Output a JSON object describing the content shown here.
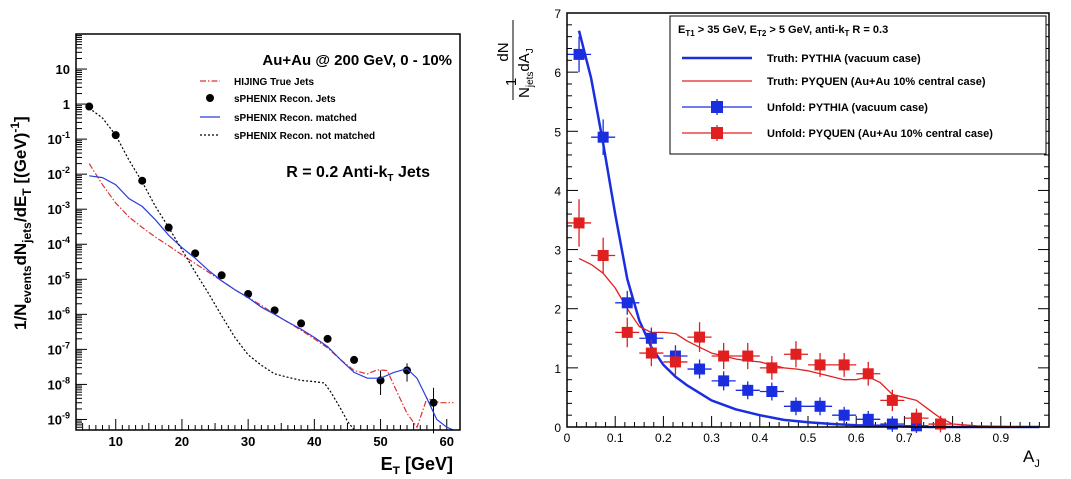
{
  "chart_data": [
    {
      "type": "line",
      "yscale": "log",
      "xlim": [
        4,
        62
      ],
      "ylim": [
        5e-10,
        100
      ],
      "xlabel": "E",
      "xlabel_sub": "T",
      "xlabel_unit": " [GeV]",
      "ylabel": "1/N_events dN_jets/dE_T [(GeV)^-1]",
      "xticks": [
        10,
        20,
        30,
        40,
        50,
        60
      ],
      "yticks": [
        {
          "v": 1e-09,
          "mant": "10",
          "exp": "-9"
        },
        {
          "v": 1e-08,
          "mant": "10",
          "exp": "-8"
        },
        {
          "v": 1e-07,
          "mant": "10",
          "exp": "-7"
        },
        {
          "v": 1e-06,
          "mant": "10",
          "exp": "-6"
        },
        {
          "v": 1e-05,
          "mant": "10",
          "exp": "-5"
        },
        {
          "v": 0.0001,
          "mant": "10",
          "exp": "-4"
        },
        {
          "v": 0.001,
          "mant": "10",
          "exp": "-3"
        },
        {
          "v": 0.01,
          "mant": "10",
          "exp": "-2"
        },
        {
          "v": 0.1,
          "mant": "10",
          "exp": "-1"
        },
        {
          "v": 1,
          "mant": "1",
          "exp": ""
        },
        {
          "v": 10,
          "mant": "10",
          "exp": ""
        }
      ],
      "annotation1": "Au+Au @ 200 GeV, 0 - 10%",
      "annotation2_main": "R = 0.2 Anti-k",
      "annotation2_sub": "T",
      "annotation2_end": " Jets",
      "legend_position": "upper-right",
      "series": [
        {
          "name": "HIJING True Jets",
          "style": "dash-dot",
          "color": "#e03030",
          "x": [
            6,
            8,
            10,
            12,
            14,
            16,
            18,
            20,
            22,
            24,
            26,
            28,
            30,
            32,
            34,
            36,
            38,
            40,
            42,
            44,
            46,
            48,
            49.5,
            51,
            52.5,
            54,
            55.5,
            57,
            59,
            61
          ],
          "y": [
            0.02,
            0.005,
            0.0015,
            0.0006,
            0.0003,
            0.00016,
            9e-05,
            5e-05,
            2.8e-05,
            1.6e-05,
            9e-06,
            5e-06,
            3e-06,
            1.8e-06,
            1e-06,
            6e-07,
            3.5e-07,
            2e-07,
            1.1e-07,
            5e-08,
            2.5e-08,
            2e-08,
            2.6e-08,
            2.5e-08,
            6e-09,
            1.5e-09,
            6e-10,
            4e-09,
            3e-09,
            3e-09
          ]
        },
        {
          "name": "sPHENIX Recon. Jets",
          "style": "points",
          "color": "#000000",
          "x": [
            6,
            10,
            14,
            18,
            22,
            26,
            30,
            34,
            38,
            42,
            46,
            50,
            54,
            58
          ],
          "y": [
            0.85,
            0.13,
            0.0065,
            0.0003,
            5.5e-05,
            1.3e-05,
            3.8e-06,
            1.3e-06,
            5.5e-07,
            2e-07,
            5e-08,
            1.3e-08,
            2.5e-08,
            3e-09
          ],
          "err_low": [
            null,
            null,
            null,
            null,
            null,
            null,
            null,
            null,
            null,
            null,
            null,
            5e-09,
            1.2e-08,
            4e-10
          ],
          "err_high": [
            null,
            null,
            null,
            null,
            null,
            null,
            null,
            null,
            null,
            null,
            null,
            2.5e-08,
            4e-08,
            8e-09
          ]
        },
        {
          "name": "sPHENIX Recon. matched",
          "style": "solid",
          "color": "#2a3de0",
          "x": [
            6,
            8,
            10,
            12,
            14,
            16,
            18,
            20,
            22,
            24,
            26,
            28,
            30,
            32,
            34,
            36,
            38,
            40,
            42,
            44,
            46,
            48,
            50,
            52,
            54,
            55.5,
            57,
            58.5,
            60,
            61
          ],
          "y": [
            0.009,
            0.008,
            0.005,
            0.002,
            0.0012,
            0.0005,
            0.00018,
            8e-05,
            4e-05,
            1.8e-05,
            9e-06,
            5e-06,
            3e-06,
            1.6e-06,
            1e-06,
            6e-07,
            3.8e-07,
            2.2e-07,
            1.2e-07,
            5e-08,
            2.2e-08,
            1.5e-08,
            1.5e-08,
            2.2e-08,
            2.8e-08,
            1.5e-08,
            4e-09,
            1e-09,
            6e-10,
            5e-10
          ]
        },
        {
          "name": "sPHENIX Recon. not matched",
          "style": "dotted",
          "color": "#000000",
          "x": [
            5.5,
            8,
            10,
            12,
            14,
            16,
            18,
            20,
            22,
            24,
            26,
            28,
            30,
            32,
            34,
            36,
            38,
            40,
            41.5,
            42.5,
            44,
            45,
            46
          ],
          "y": [
            0.9,
            0.4,
            0.13,
            0.025,
            0.006,
            0.0012,
            0.0003,
            7e-05,
            1.6e-05,
            4e-06,
            9e-07,
            2.2e-07,
            7e-08,
            3.5e-08,
            2e-08,
            1.6e-08,
            1.3e-08,
            1.2e-08,
            1.1e-08,
            6e-09,
            2e-09,
            9e-10,
            5e-10
          ]
        }
      ]
    },
    {
      "type": "line",
      "xlim": [
        0,
        1
      ],
      "ylim": [
        0,
        7
      ],
      "xlabel": "A",
      "xlabel_sub": "J",
      "ylabel": "1/N_jets dN/dA_J",
      "ylabel_parts": {
        "one": "1",
        "num": "dN",
        "den1": "N",
        "den_sub": "jets",
        "den2": "dA",
        "den_sub2": "J"
      },
      "xticks": [
        0,
        0.1,
        0.2,
        0.3,
        0.4,
        0.5,
        0.6,
        0.7,
        0.8,
        0.9
      ],
      "xtick_labels": [
        "0",
        "0.1",
        "0.2",
        "0.3",
        "0.4",
        "0.5",
        "0.6",
        "0.7",
        "0.8",
        "0.9"
      ],
      "yticks": [
        0,
        1,
        2,
        3,
        4,
        5,
        6,
        7
      ],
      "legend_title": {
        "a": "E",
        "a_sub": "T1",
        "b": " > 35 GeV, E",
        "b_sub": "T2",
        "c": " > 5 GeV, anti-k",
        "c_sub": "T",
        "d": " R = 0.3"
      },
      "legend_position": "top-right",
      "series": [
        {
          "name": "Truth:  PYTHIA (vacuum case)",
          "style": "solid",
          "color": "#1a2ee0",
          "x": [
            0.025,
            0.05,
            0.075,
            0.1,
            0.125,
            0.15,
            0.175,
            0.2,
            0.225,
            0.25,
            0.3,
            0.35,
            0.4,
            0.45,
            0.5,
            0.55,
            0.6,
            0.65,
            0.7,
            0.75,
            0.8,
            0.85,
            0.9,
            0.95,
            0.98
          ],
          "y": [
            6.7,
            5.9,
            4.8,
            3.6,
            2.5,
            1.8,
            1.35,
            1.05,
            0.85,
            0.7,
            0.45,
            0.3,
            0.2,
            0.12,
            0.08,
            0.05,
            0.03,
            0.02,
            0.01,
            0,
            0,
            0,
            0,
            0,
            0
          ]
        },
        {
          "name": "Truth:  PYQUEN (Au+Au 10% central case)",
          "style": "solid",
          "color": "#e02020",
          "x": [
            0.025,
            0.05,
            0.075,
            0.1,
            0.125,
            0.15,
            0.175,
            0.2,
            0.225,
            0.25,
            0.275,
            0.3,
            0.325,
            0.35,
            0.375,
            0.4,
            0.425,
            0.45,
            0.475,
            0.5,
            0.525,
            0.55,
            0.575,
            0.6,
            0.625,
            0.65,
            0.675,
            0.7,
            0.725,
            0.75,
            0.775,
            0.8,
            0.85,
            0.9,
            0.95,
            0.98
          ],
          "y": [
            2.85,
            2.75,
            2.6,
            2.35,
            2.0,
            1.7,
            1.6,
            1.6,
            1.58,
            1.45,
            1.35,
            1.25,
            1.2,
            1.15,
            1.12,
            1.1,
            1.05,
            1.0,
            0.98,
            0.95,
            0.9,
            0.85,
            0.8,
            0.8,
            0.85,
            0.75,
            0.55,
            0.5,
            0.45,
            0.3,
            0.15,
            0.05,
            0.02,
            0.01,
            0,
            0
          ]
        },
        {
          "name": "Unfold:  PYTHIA (vacuum case)",
          "style": "points",
          "color": "#1a2ee0",
          "x": [
            0.025,
            0.075,
            0.125,
            0.175,
            0.225,
            0.275,
            0.325,
            0.375,
            0.425,
            0.475,
            0.525,
            0.575,
            0.625,
            0.675,
            0.725
          ],
          "y": [
            6.3,
            4.9,
            2.1,
            1.5,
            1.2,
            0.98,
            0.78,
            0.62,
            0.6,
            0.35,
            0.35,
            0.2,
            0.13,
            0.05,
            0.02
          ],
          "err": [
            0.2,
            0.2,
            0.1,
            0.08,
            0.08,
            0.06,
            0.06,
            0.05,
            0.05,
            0.05,
            0.05,
            0.04,
            0.04,
            0.03,
            0.02
          ]
        },
        {
          "name": "Unfold:  PYQUEN (Au+Au 10% central case)",
          "style": "points",
          "color": "#e02020",
          "x": [
            0.025,
            0.075,
            0.125,
            0.175,
            0.225,
            0.275,
            0.325,
            0.375,
            0.425,
            0.475,
            0.525,
            0.575,
            0.625,
            0.675,
            0.725,
            0.775
          ],
          "y": [
            3.45,
            2.9,
            1.6,
            1.25,
            1.1,
            1.52,
            1.2,
            1.2,
            1.0,
            1.23,
            1.05,
            1.05,
            0.9,
            0.45,
            0.15,
            0.05
          ],
          "err": [
            0.3,
            0.2,
            0.15,
            0.12,
            0.12,
            0.15,
            0.12,
            0.12,
            0.1,
            0.12,
            0.1,
            0.1,
            0.1,
            0.08,
            0.06,
            0.04
          ]
        }
      ]
    }
  ]
}
